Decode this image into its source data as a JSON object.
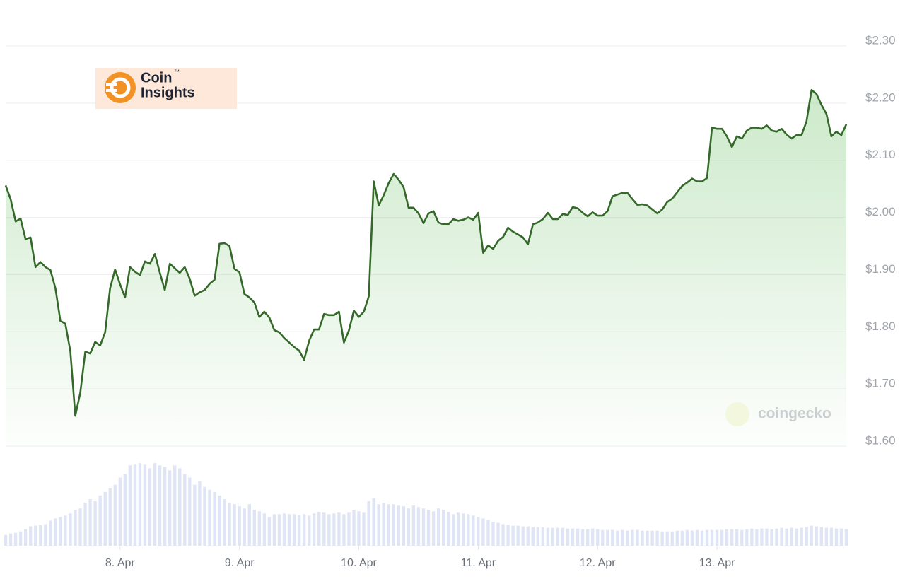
{
  "logo": {
    "line1": "Coin",
    "trademark": "™",
    "line2": "Insights"
  },
  "watermark": "coingecko",
  "chart_data": {
    "type": "line",
    "x": [
      -23,
      -22,
      -21,
      -20,
      -19,
      -18,
      -17,
      -16,
      -15,
      -14,
      -13,
      -12,
      -11,
      -10,
      -9,
      -8,
      -7,
      -6,
      -5,
      -4,
      -3,
      -2,
      -1,
      0,
      1,
      2,
      3,
      4,
      5,
      6,
      7,
      8,
      9,
      10,
      11,
      12,
      13,
      14,
      15,
      16,
      17,
      18,
      19,
      20,
      21,
      22,
      23,
      24,
      25,
      26,
      27,
      28,
      29,
      30,
      31,
      32,
      33,
      34,
      35,
      36,
      37,
      38,
      39,
      40,
      41,
      42,
      43,
      44,
      45,
      46,
      47,
      48,
      49,
      50,
      51,
      52,
      53,
      54,
      55,
      56,
      57,
      58,
      59,
      60,
      61,
      62,
      63,
      64,
      65,
      66,
      67,
      68,
      69,
      70,
      71,
      72,
      73,
      74,
      75,
      76,
      77,
      78,
      79,
      80,
      81,
      82,
      83,
      84,
      85,
      86,
      87,
      88,
      89,
      90,
      91,
      92,
      93,
      94,
      95,
      96,
      97,
      98,
      99,
      100,
      101,
      102,
      103,
      104,
      105,
      106,
      107,
      108,
      109,
      110,
      111,
      112,
      113,
      114,
      115,
      116,
      117,
      118,
      119,
      120,
      121,
      122,
      123,
      124,
      125,
      126,
      127,
      128,
      129,
      130,
      131,
      132,
      133,
      134,
      135,
      136,
      137,
      138,
      139,
      140,
      141,
      142,
      143,
      144,
      145,
      146
    ],
    "xlim": [
      -23,
      146
    ],
    "xticks": [
      {
        "value": 0,
        "label": "8. Apr"
      },
      {
        "value": 24,
        "label": "9. Apr"
      },
      {
        "value": 48,
        "label": "10. Apr"
      },
      {
        "value": 72,
        "label": "11. Apr"
      },
      {
        "value": 96,
        "label": "12. Apr"
      },
      {
        "value": 120,
        "label": "13. Apr"
      }
    ],
    "ylim": [
      1.6,
      2.3
    ],
    "yticks": [
      {
        "value": 1.6,
        "label": "$1.60"
      },
      {
        "value": 1.7,
        "label": "$1.70"
      },
      {
        "value": 1.8,
        "label": "$1.80"
      },
      {
        "value": 1.9,
        "label": "$1.90"
      },
      {
        "value": 2.0,
        "label": "$2.00"
      },
      {
        "value": 2.1,
        "label": "$2.10"
      },
      {
        "value": 2.2,
        "label": "$2.20"
      },
      {
        "value": 2.3,
        "label": "$2.30"
      }
    ],
    "y2lim": [
      0,
      130
    ],
    "grid": true,
    "series": [
      {
        "color": "#34692a",
        "values": [
          2.056,
          2.032,
          1.993,
          1.998,
          1.962,
          1.965,
          1.913,
          1.922,
          1.913,
          1.908,
          1.876,
          1.819,
          1.814,
          1.766,
          1.653,
          1.693,
          1.765,
          1.762,
          1.782,
          1.776,
          1.799,
          1.876,
          1.909,
          1.883,
          1.86,
          1.913,
          1.905,
          1.899,
          1.923,
          1.919,
          1.936,
          1.903,
          1.873,
          1.919,
          1.911,
          1.903,
          1.913,
          1.893,
          1.863,
          1.869,
          1.873,
          1.884,
          1.891,
          1.954,
          1.955,
          1.95,
          1.91,
          1.904,
          1.866,
          1.86,
          1.851,
          1.826,
          1.835,
          1.825,
          1.803,
          1.799,
          1.789,
          1.781,
          1.773,
          1.767,
          1.751,
          1.784,
          1.804,
          1.804,
          1.831,
          1.829,
          1.829,
          1.835,
          1.781,
          1.802,
          1.837,
          1.826,
          1.835,
          1.862,
          2.063,
          2.021,
          2.039,
          2.06,
          2.076,
          2.066,
          2.053,
          2.017,
          2.017,
          2.007,
          1.99,
          2.007,
          2.011,
          1.991,
          1.988,
          1.988,
          1.997,
          1.994,
          1.996,
          2.0,
          1.996,
          2.008,
          1.938,
          1.951,
          1.945,
          1.959,
          1.966,
          1.982,
          1.975,
          1.97,
          1.965,
          1.953,
          1.988,
          1.991,
          1.997,
          2.008,
          1.997,
          1.997,
          2.006,
          2.004,
          2.018,
          2.016,
          2.008,
          2.002,
          2.009,
          2.003,
          2.003,
          2.011,
          2.037,
          2.04,
          2.043,
          2.043,
          2.032,
          2.022,
          2.023,
          2.021,
          2.014,
          2.007,
          2.014,
          2.027,
          2.033,
          2.044,
          2.055,
          2.061,
          2.068,
          2.063,
          2.063,
          2.069,
          2.157,
          2.155,
          2.155,
          2.142,
          2.123,
          2.142,
          2.138,
          2.152,
          2.157,
          2.157,
          2.155,
          2.161,
          2.152,
          2.15,
          2.155,
          2.145,
          2.138,
          2.144,
          2.144,
          2.168,
          2.223,
          2.216,
          2.197,
          2.181,
          2.142,
          2.15,
          2.144,
          2.163
        ]
      },
      {
        "type": "bar",
        "axis": "y2",
        "color": "#dfe5f4",
        "values": [
          15,
          17,
          18,
          20,
          23,
          27,
          28,
          29,
          30,
          35,
          38,
          40,
          42,
          45,
          50,
          52,
          60,
          65,
          62,
          70,
          75,
          80,
          85,
          95,
          100,
          112,
          113,
          115,
          113,
          108,
          115,
          112,
          110,
          105,
          112,
          108,
          100,
          95,
          85,
          90,
          82,
          78,
          75,
          70,
          65,
          60,
          58,
          55,
          52,
          58,
          50,
          48,
          45,
          40,
          44,
          44,
          45,
          44,
          44,
          43,
          44,
          42,
          45,
          47,
          46,
          44,
          45,
          46,
          44,
          46,
          50,
          48,
          46,
          62,
          66,
          58,
          60,
          58,
          58,
          56,
          55,
          52,
          56,
          54,
          52,
          50,
          48,
          52,
          50,
          47,
          44,
          46,
          45,
          44,
          42,
          40,
          38,
          36,
          33,
          32,
          30,
          29,
          28,
          28,
          27,
          27,
          26,
          26,
          26,
          25,
          25,
          25,
          25,
          24,
          24,
          24,
          23,
          23,
          24,
          23,
          22,
          22,
          22,
          21,
          22,
          21,
          22,
          22,
          21,
          21,
          21,
          21,
          20,
          20,
          20,
          21,
          21,
          22,
          21,
          22,
          21,
          22,
          22,
          22,
          22,
          23,
          23,
          23,
          22,
          23,
          24,
          23,
          24,
          24,
          23,
          24,
          25,
          24,
          25,
          24,
          25,
          26,
          28,
          27,
          26,
          25,
          25,
          24,
          24,
          23
        ]
      }
    ]
  }
}
